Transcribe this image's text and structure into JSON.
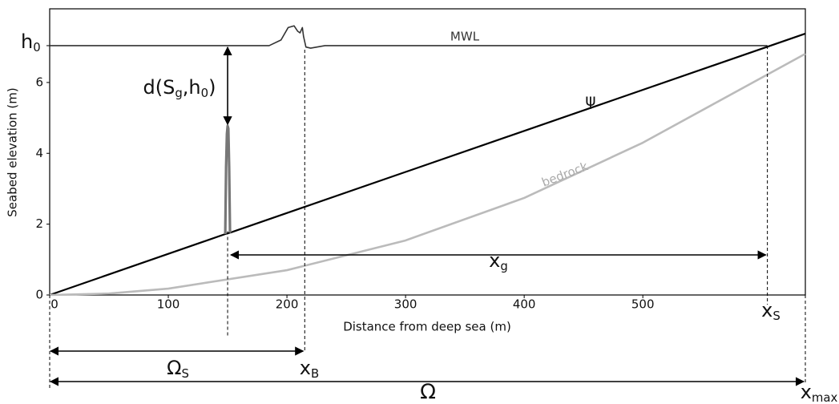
{
  "chart_data": {
    "type": "schematic",
    "x_label": "Distance from deep sea (m)",
    "y_label": "Seabed elevation (m)",
    "xlim": [
      0,
      637
    ],
    "ylim": [
      0,
      8.08
    ],
    "xticks": [
      0,
      100,
      200,
      300,
      400,
      500
    ],
    "yticks": [
      0,
      2,
      4,
      6
    ],
    "h0": {
      "value": 7.04,
      "text": "h",
      "sub": "0"
    },
    "series": [
      {
        "name": "MWL",
        "color": "#333333",
        "x": [
          0,
          185,
          195,
          201,
          206,
          209,
          211,
          213,
          214,
          216,
          220,
          232,
          605
        ],
        "values": [
          7.04,
          7.04,
          7.2,
          7.55,
          7.6,
          7.45,
          7.4,
          7.55,
          7.3,
          7.0,
          6.97,
          7.04,
          7.04
        ]
      },
      {
        "name": "ψ",
        "color": "#000000",
        "x": [
          0,
          148,
          153,
          637
        ],
        "values": [
          0,
          1.72,
          1.77,
          7.38
        ]
      },
      {
        "color": "#777777",
        "x": [
          148,
          148.7,
          149.4,
          150,
          150.6,
          151.3,
          152,
          153
        ],
        "values": [
          1.72,
          3.6,
          4.55,
          4.77,
          4.7,
          3.6,
          1.8,
          1.77
        ]
      },
      {
        "name": "bedrock",
        "color": "#bbbbbb",
        "x": [
          0,
          50,
          100,
          200,
          300,
          400,
          500,
          637
        ],
        "values": [
          0,
          0.04,
          0.18,
          0.7,
          1.54,
          2.74,
          4.3,
          6.81
        ]
      }
    ],
    "markers": {
      "dune": 150,
      "x_B": 215,
      "x_S": 605,
      "x_max": 637,
      "dune_top": 4.77
    },
    "labels": {
      "d": [
        {
          "text": "d(S"
        },
        {
          "sub": "g"
        },
        {
          "text": ",h"
        },
        {
          "sub": "0"
        },
        {
          "text": ")"
        }
      ],
      "x_g": {
        "text": "x",
        "sub": "g"
      },
      "x_S": {
        "text": "x",
        "sub": "S"
      },
      "x_B": {
        "text": "x",
        "sub": "B"
      },
      "Omega_S": {
        "text": "Ω",
        "sub": "S"
      },
      "Omega": "Ω",
      "x_max": {
        "text": "x",
        "sub": "max"
      }
    }
  }
}
